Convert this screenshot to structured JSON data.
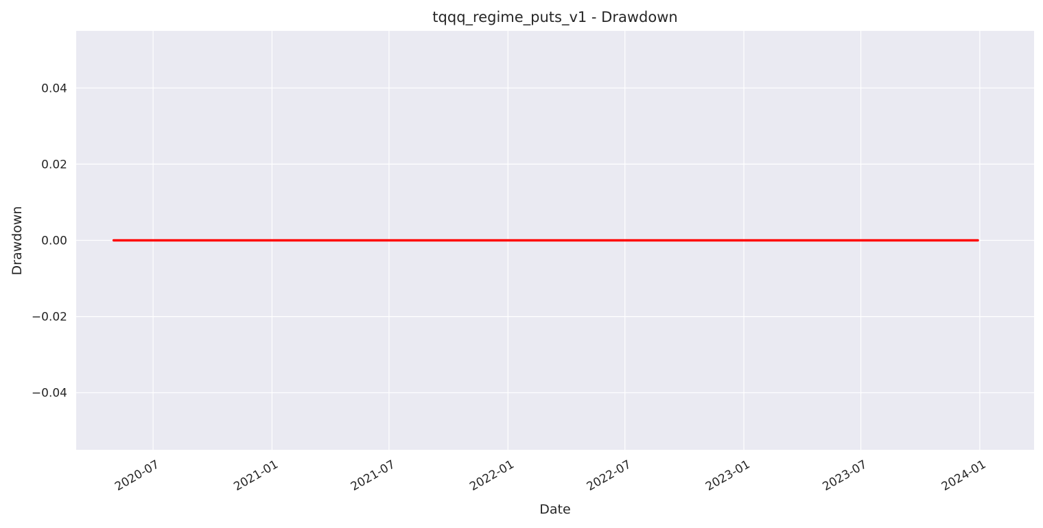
{
  "chart_data": {
    "type": "line",
    "title": "tqqq_regime_puts_v1 - Drawdown",
    "xlabel": "Date",
    "ylabel": "Drawdown",
    "x_range": [
      "2020-03-04",
      "2024-03-25"
    ],
    "ylim": [
      -0.055,
      0.055
    ],
    "x_ticks": [
      "2020-07",
      "2021-01",
      "2021-07",
      "2022-01",
      "2022-07",
      "2023-01",
      "2023-07",
      "2024-01"
    ],
    "x_tick_dates": [
      "2020-07-01",
      "2021-01-01",
      "2021-07-01",
      "2022-01-01",
      "2022-07-01",
      "2023-01-01",
      "2023-07-01",
      "2024-01-01"
    ],
    "y_ticks": [
      0.04,
      0.02,
      0.0,
      -0.02,
      -0.04
    ],
    "y_tick_labels": [
      "0.04",
      "0.02",
      "0.00",
      "−0.02",
      "−0.04"
    ],
    "grid": true,
    "series": [
      {
        "color": "#ff0000",
        "x": [
          "2020-05-01",
          "2023-12-29"
        ],
        "y": [
          0.0,
          0.0
        ]
      }
    ],
    "colors": {
      "plot_background": "#eaeaf2",
      "grid": "#ffffff",
      "text": "#262626"
    }
  }
}
